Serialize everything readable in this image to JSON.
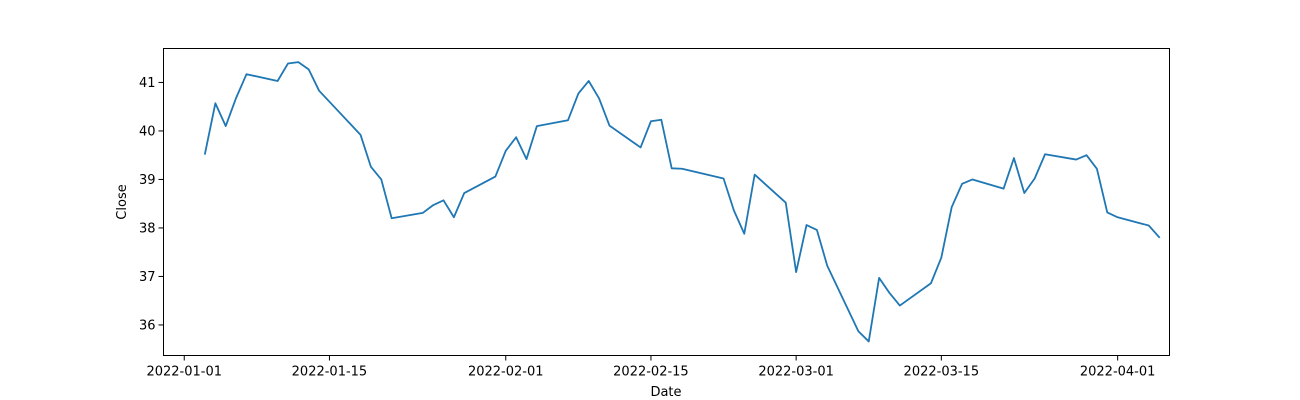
{
  "chart_data": {
    "type": "line",
    "xlabel": "Date",
    "ylabel": "Close",
    "x_range": [
      "2021-12-30",
      "2022-04-06"
    ],
    "ylim": [
      35.37,
      41.7
    ],
    "x_ticks": [
      {
        "value": "2022-01-01",
        "label": "2022-01-01"
      },
      {
        "value": "2022-01-15",
        "label": "2022-01-15"
      },
      {
        "value": "2022-02-01",
        "label": "2022-02-01"
      },
      {
        "value": "2022-02-15",
        "label": "2022-02-15"
      },
      {
        "value": "2022-03-01",
        "label": "2022-03-01"
      },
      {
        "value": "2022-03-15",
        "label": "2022-03-15"
      },
      {
        "value": "2022-04-01",
        "label": "2022-04-01"
      }
    ],
    "y_ticks": [
      36,
      37,
      38,
      39,
      40,
      41
    ],
    "grid": false,
    "line_color": "#1f77b4",
    "series": [
      {
        "x": [
          "2022-01-03",
          "2022-01-04",
          "2022-01-05",
          "2022-01-06",
          "2022-01-07",
          "2022-01-10",
          "2022-01-11",
          "2022-01-12",
          "2022-01-13",
          "2022-01-14",
          "2022-01-18",
          "2022-01-19",
          "2022-01-20",
          "2022-01-21",
          "2022-01-24",
          "2022-01-25",
          "2022-01-26",
          "2022-01-27",
          "2022-01-28",
          "2022-01-31",
          "2022-02-01",
          "2022-02-02",
          "2022-02-03",
          "2022-02-04",
          "2022-02-07",
          "2022-02-08",
          "2022-02-09",
          "2022-02-10",
          "2022-02-11",
          "2022-02-14",
          "2022-02-15",
          "2022-02-16",
          "2022-02-17",
          "2022-02-18",
          "2022-02-22",
          "2022-02-23",
          "2022-02-24",
          "2022-02-25",
          "2022-02-28",
          "2022-03-01",
          "2022-03-02",
          "2022-03-03",
          "2022-03-04",
          "2022-03-07",
          "2022-03-08",
          "2022-03-09",
          "2022-03-10",
          "2022-03-11",
          "2022-03-14",
          "2022-03-15",
          "2022-03-16",
          "2022-03-17",
          "2022-03-18",
          "2022-03-21",
          "2022-03-22",
          "2022-03-23",
          "2022-03-24",
          "2022-03-25",
          "2022-03-28",
          "2022-03-29",
          "2022-03-30",
          "2022-03-31",
          "2022-04-01",
          "2022-04-04",
          "2022-04-05"
        ],
        "y": [
          39.53,
          40.57,
          40.1,
          40.68,
          41.17,
          41.03,
          41.39,
          41.42,
          41.27,
          40.83,
          39.92,
          39.26,
          39.0,
          38.2,
          38.31,
          38.47,
          38.57,
          38.22,
          38.72,
          39.06,
          39.59,
          39.87,
          39.42,
          40.1,
          40.22,
          40.77,
          41.03,
          40.67,
          40.11,
          39.66,
          40.2,
          40.23,
          39.23,
          39.22,
          39.02,
          38.36,
          37.88,
          39.1,
          38.52,
          37.09,
          38.06,
          37.96,
          37.22,
          35.87,
          35.66,
          36.97,
          36.66,
          36.4,
          36.86,
          37.39,
          38.43,
          38.91,
          39.0,
          38.81,
          39.44,
          38.72,
          39.02,
          39.52,
          39.41,
          39.5,
          39.22,
          38.32,
          38.22,
          38.05,
          37.81
        ]
      }
    ]
  }
}
